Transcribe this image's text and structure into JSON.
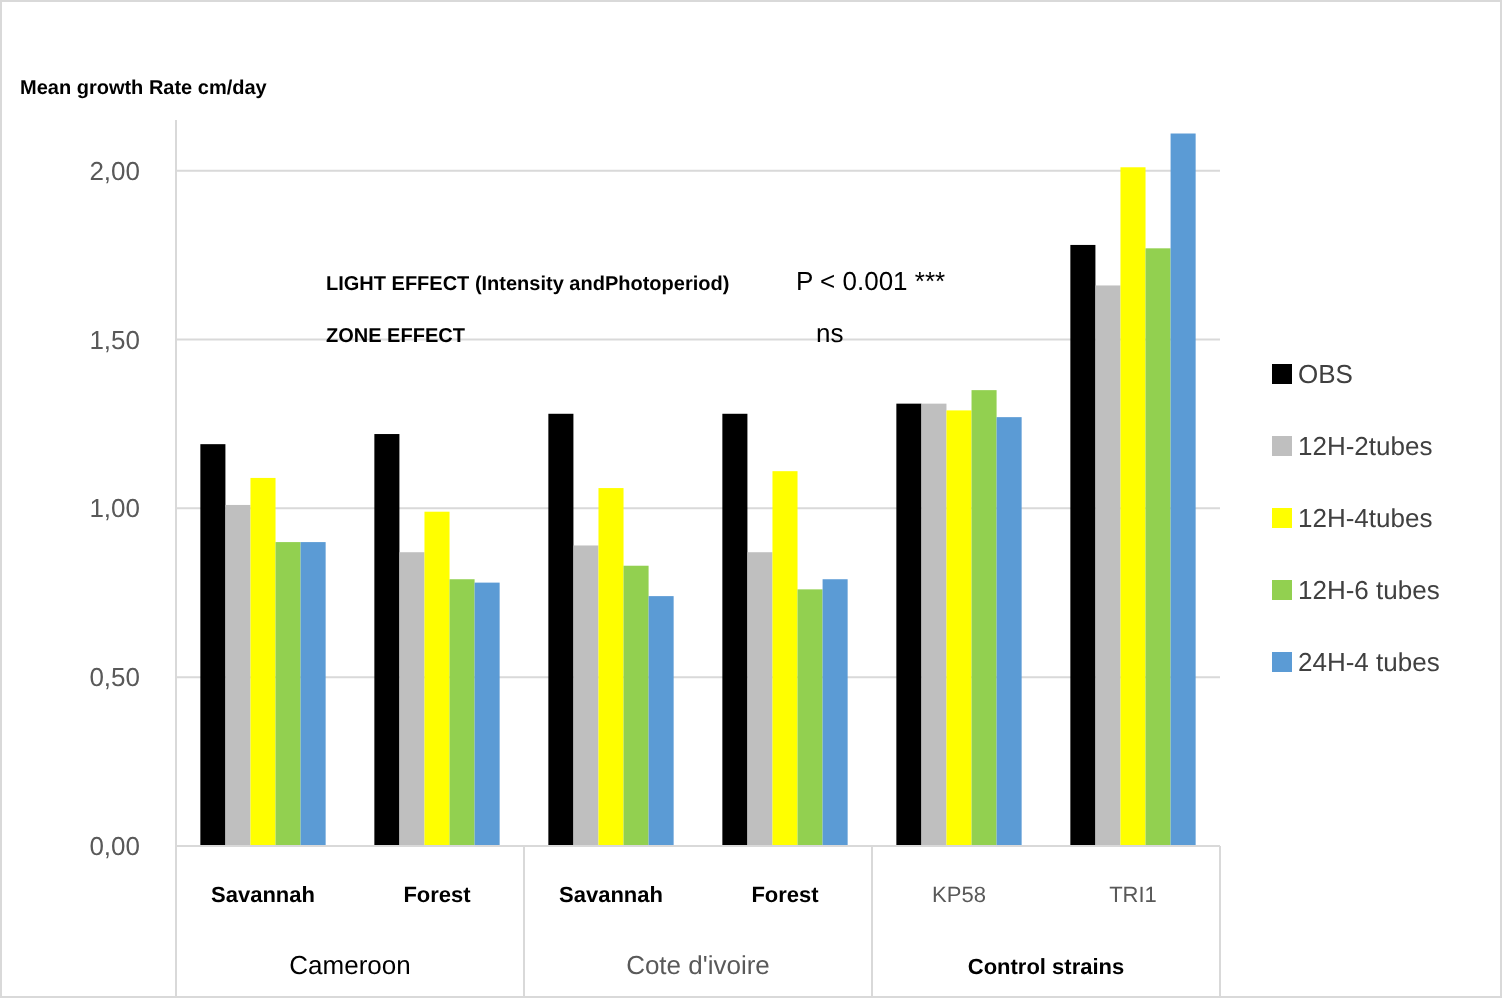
{
  "chart_data": {
    "type": "bar",
    "ylabel": "Mean growth Rate cm/day",
    "categories": [
      "Savannah",
      "Forest",
      "Savannah",
      "Forest",
      "KP58",
      "TRI1"
    ],
    "series": [
      {
        "name": "OBS",
        "color": "#000000",
        "values": [
          1.19,
          1.22,
          1.28,
          1.28,
          1.31,
          1.78
        ]
      },
      {
        "name": "12H-2tubes",
        "color": "#bfbfbf",
        "values": [
          1.01,
          0.87,
          0.89,
          0.87,
          1.31,
          1.66
        ]
      },
      {
        "name": "12H-4tubes",
        "color": "#ffff00",
        "values": [
          1.09,
          0.99,
          1.06,
          1.11,
          1.29,
          2.01
        ]
      },
      {
        "name": "12H-6 tubes",
        "color": "#92d050",
        "values": [
          0.9,
          0.79,
          0.83,
          0.76,
          1.35,
          1.77
        ]
      },
      {
        "name": "24H-4 tubes",
        "color": "#5b9bd5",
        "values": [
          0.9,
          0.78,
          0.74,
          0.79,
          1.27,
          2.11
        ]
      }
    ],
    "ylim": [
      0,
      2.15
    ],
    "yticks": [
      {
        "value": 0,
        "label": "0,00"
      },
      {
        "value": 0.5,
        "label": "0,50"
      },
      {
        "value": 1,
        "label": "1,00"
      },
      {
        "value": 1.5,
        "label": "1,50"
      },
      {
        "value": 2,
        "label": "2,00"
      }
    ],
    "grid": "y",
    "legend": "right",
    "annotations": [
      "LIGHT EFFECT (Intensity andPhotoperiod)",
      "P < 0.001  ***",
      "ZONE EFFECT",
      "ns",
      "Cameroon",
      "Cote d'ivoire",
      "Control strains"
    ]
  }
}
